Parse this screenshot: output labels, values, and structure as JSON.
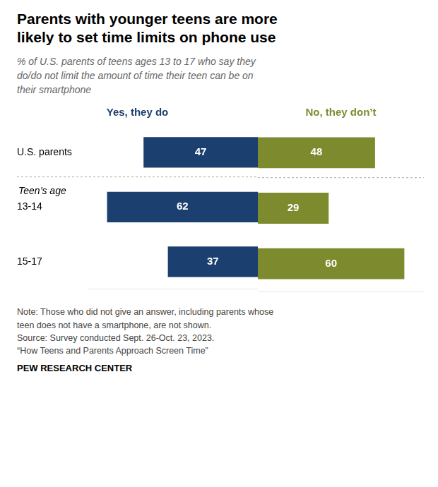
{
  "chart_data": [
    {
      "type": "bar",
      "orientation": "horizontal",
      "title": "Parents with younger teens are more\nlikely to set time limits on phone use",
      "subtitle": "% of U.S. parents of teens ages 13 to 17 who say they\ndo/do not limit the amount of time their teen can be on\ntheir smartphone",
      "notes": [
        "Note: Those who did not give an answer, including parents whose",
        "teen does not have a smartphone, are not shown.",
        "Source: Survey conducted Sept. 26-Oct. 23, 2023.",
        "“How Teens and Parents Approach Screen Time”"
      ],
      "source": "PEW RESEARCH CENTER",
      "annotations": [
        "Teen’s age"
      ],
      "categories": [
        "U.S. parents",
        "13-14",
        "15-17"
      ],
      "series": [
        {
          "name": "Yes, they do",
          "color": "#1b3f6e",
          "values": [
            47,
            62,
            37
          ]
        }
      ],
      "xlim": [
        70,
        0
      ],
      "grid": false,
      "tick_labels": "y",
      "data_labels": true
    },
    {
      "type": "bar",
      "orientation": "horizontal",
      "categories": [
        "U.S. parents",
        "13-14",
        "15-17"
      ],
      "series": [
        {
          "name": "No, they don’t",
          "color": "#7d8b2e",
          "values": [
            48,
            29,
            60
          ]
        }
      ],
      "xlim": [
        0,
        68
      ],
      "grid": false,
      "tick_labels": false,
      "data_labels": true
    }
  ]
}
